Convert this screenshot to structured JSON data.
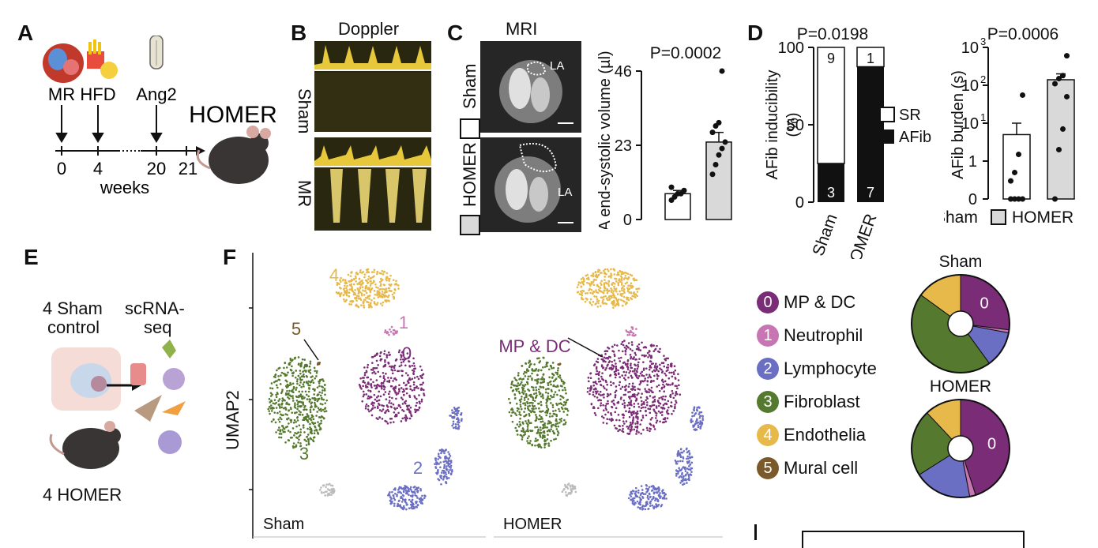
{
  "panels": {
    "A": {
      "label": "A",
      "timeline": {
        "events": [
          "MR",
          "HFD",
          "Ang2",
          "HOMER"
        ],
        "ticks": [
          "0",
          "4",
          "20",
          "21"
        ],
        "unit": "weeks"
      }
    },
    "B": {
      "label": "B",
      "title": "Doppler",
      "rows": [
        "Sham",
        "MR"
      ]
    },
    "C": {
      "label": "C",
      "title": "MRI",
      "rows": [
        "Sham",
        "HOMER"
      ],
      "annotation": "LA",
      "chart_data": {
        "type": "bar",
        "categories": [
          "Sham",
          "HOMER"
        ],
        "values": [
          8,
          24
        ],
        "errors": [
          1,
          3
        ],
        "points": [
          [
            6,
            7,
            8,
            8,
            9,
            10
          ],
          [
            14,
            17,
            20,
            22,
            24,
            27,
            29,
            30,
            46
          ]
        ],
        "ylabel": "LA end-systolic volume (µl)",
        "yticks": [
          "0",
          "23",
          "46"
        ],
        "ylim": [
          0,
          46
        ],
        "pvalue": "P=0.0002",
        "colors": [
          "#ffffff",
          "#d9d9d9"
        ]
      }
    },
    "D": {
      "label": "D",
      "chart_stack": {
        "type": "bar",
        "categories": [
          "Sham",
          "HOMER"
        ],
        "series": [
          {
            "name": "SR",
            "values": [
              9,
              1
            ],
            "percent": [
              75,
              12.5
            ]
          },
          {
            "name": "AFib",
            "values": [
              3,
              7
            ],
            "percent": [
              25,
              87.5
            ]
          }
        ],
        "ylabel": "AFib inducibility (%)",
        "yticks": [
          "0",
          "50",
          "100"
        ],
        "ylim": [
          0,
          100
        ],
        "pvalue": "P=0.0198"
      },
      "chart_burden": {
        "type": "bar",
        "categories": [
          "Sham",
          "HOMER"
        ],
        "values": [
          5,
          140
        ],
        "error_top": [
          10,
          200
        ],
        "points": [
          [
            0.01,
            0.01,
            0.01,
            0.1,
            0.3,
            0.5,
            1.5,
            55
          ],
          [
            0.1,
            2,
            7,
            50,
            110,
            150,
            180,
            600
          ]
        ],
        "ylabel": "AFib burden (s)",
        "yscale": "log",
        "yticks": [
          "0",
          "1",
          "10",
          "10",
          "10"
        ],
        "ytick_exp": [
          "",
          "",
          "1",
          "2",
          "3"
        ],
        "pvalue": "P=0.0006",
        "legend": [
          "Sham",
          "HOMER"
        ]
      }
    },
    "E": {
      "label": "E",
      "lines": [
        "4 Sham",
        "control",
        "scRNA-",
        "seq",
        "4 HOMER"
      ]
    },
    "F": {
      "label": "F",
      "yaxis": "UMAP2",
      "umap_titles": [
        "Sham",
        "HOMER"
      ],
      "cluster_labels": [
        "0",
        "1",
        "2",
        "3",
        "4",
        "5"
      ],
      "annotation": "MP & DC",
      "legend": [
        {
          "id": "0",
          "name": "MP & DC",
          "color": "#7a2d76"
        },
        {
          "id": "1",
          "name": "Neutrophil",
          "color": "#c875b4"
        },
        {
          "id": "2",
          "name": "Lymphocyte",
          "color": "#6b6fc4"
        },
        {
          "id": "3",
          "name": "Fibroblast",
          "color": "#55792e"
        },
        {
          "id": "4",
          "name": "Endothelia",
          "color": "#e6b94a"
        },
        {
          "id": "5",
          "name": "Mural cell",
          "color": "#7a5a2a"
        }
      ],
      "chart_data": [
        {
          "type": "pie",
          "title": "Sham",
          "categories": [
            "MP & DC",
            "Neutrophil",
            "Lymphocyte",
            "Fibroblast",
            "Endothelia"
          ],
          "values": [
            27,
            1,
            12,
            45,
            15
          ],
          "marked": "0"
        },
        {
          "type": "pie",
          "title": "HOMER",
          "categories": [
            "MP & DC",
            "Neutrophil",
            "Lymphocyte",
            "Fibroblast",
            "Endothelia"
          ],
          "values": [
            45,
            2,
            19,
            22,
            12
          ],
          "marked": "0"
        }
      ]
    },
    "I": {
      "label": "I"
    }
  }
}
